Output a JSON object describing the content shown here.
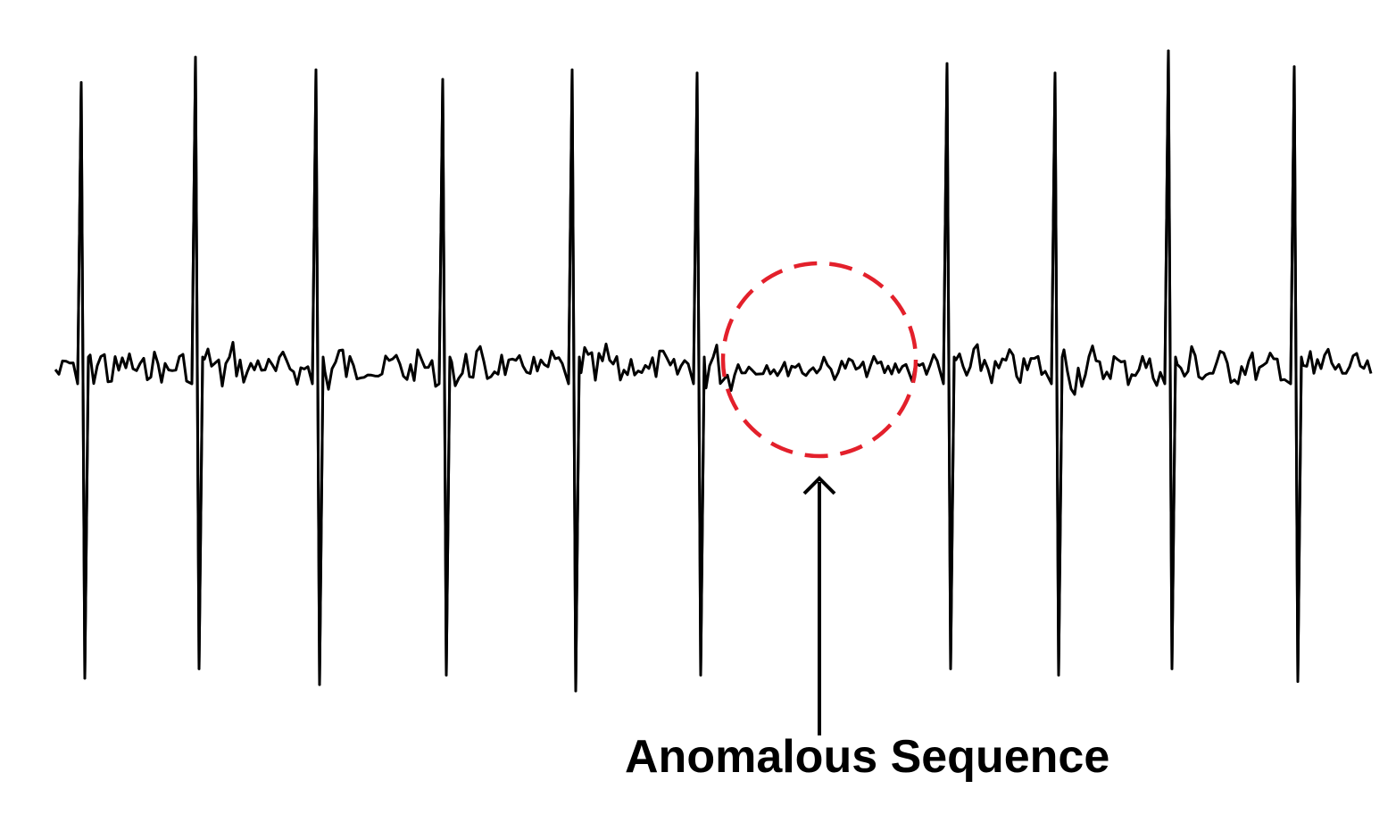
{
  "chart_data": {
    "type": "line",
    "title": "",
    "xlabel": "",
    "ylabel": "",
    "axes_visible": false,
    "grid": false,
    "legend": "none",
    "baseline_level": 0,
    "ylim": [
      -1.0,
      1.0
    ],
    "beats": [
      {
        "r_peak": 0.9,
        "s_trough": -0.98
      },
      {
        "r_peak": 0.98,
        "s_trough": -0.95
      },
      {
        "r_peak": 0.94,
        "s_trough": -1.0
      },
      {
        "r_peak": 0.91,
        "s_trough": -0.97
      },
      {
        "r_peak": 0.94,
        "s_trough": -1.02
      },
      {
        "r_peak": 0.93,
        "s_trough": -0.97
      },
      {
        "anomalous": true,
        "r_peak": null,
        "s_trough": null
      },
      {
        "r_peak": 0.96,
        "s_trough": -0.95
      },
      {
        "r_peak": 0.93,
        "s_trough": -0.97
      },
      {
        "r_peak": 1.0,
        "s_trough": -0.95
      },
      {
        "r_peak": 0.95,
        "s_trough": -0.99
      }
    ],
    "line_color": "#000000",
    "highlight": {
      "shape": "dashed-circle",
      "color": "#e3202b",
      "target_beat_index": 6
    },
    "annotation": {
      "text": "Anomalous Sequence",
      "arrow_color": "#000000",
      "text_color": "#000000"
    }
  }
}
